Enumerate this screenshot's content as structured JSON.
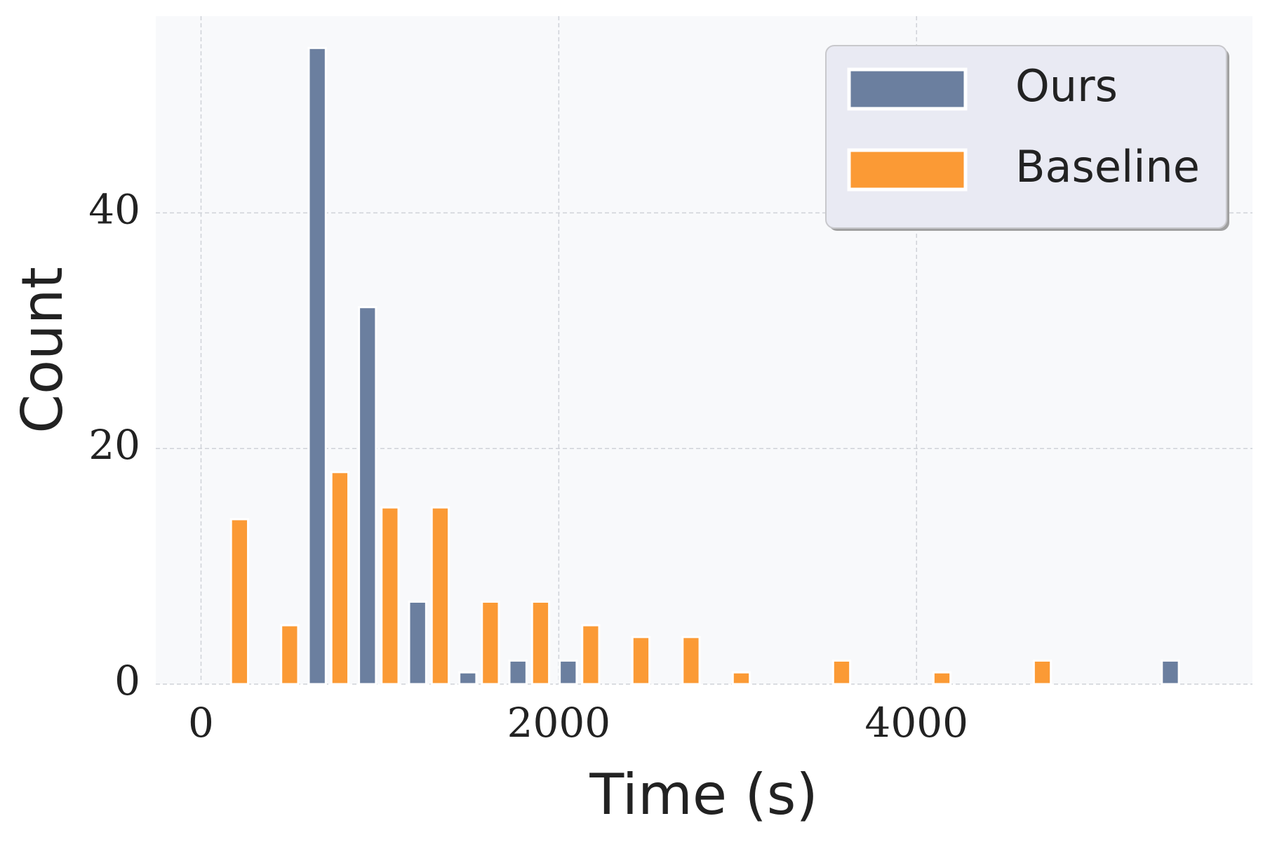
{
  "chart_data": {
    "type": "histogram",
    "x_label": "Time (s)",
    "y_label": "Count",
    "bins": [
      27,
      308,
      588,
      869,
      1149,
      1430,
      1710,
      1991,
      2271,
      2552,
      2832,
      3113,
      3393,
      3674,
      3954,
      4235,
      4515,
      4796,
      5076,
      5357,
      5638
    ],
    "series": [
      {
        "name": "Ours",
        "color": "#6b7f9f",
        "values": [
          0,
          0,
          54,
          32,
          7,
          1,
          2,
          2,
          0,
          0,
          0,
          0,
          0,
          0,
          0,
          0,
          0,
          0,
          0,
          2
        ]
      },
      {
        "name": "Baseline",
        "color": "#fb9a35",
        "values": [
          14,
          5,
          18,
          15,
          15,
          7,
          7,
          5,
          4,
          4,
          1,
          0,
          2,
          0,
          1,
          0,
          2,
          0,
          0,
          0
        ]
      }
    ],
    "xlim": [
      -253,
      5878
    ],
    "ylim": [
      0,
      56.7
    ],
    "xticks": [
      0,
      2000,
      4000
    ],
    "yticks": [
      0,
      20,
      40
    ],
    "grid": true,
    "legend": "upper right"
  }
}
